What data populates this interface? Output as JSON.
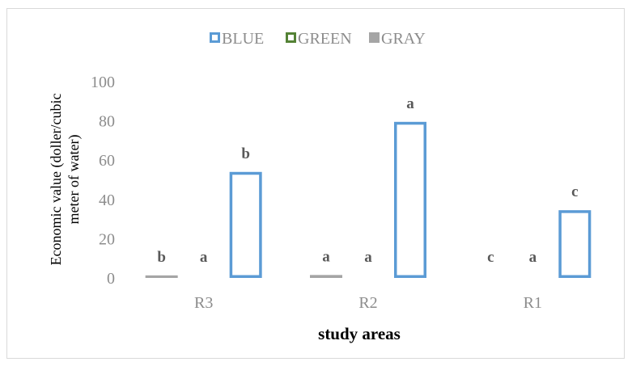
{
  "chart_data": {
    "type": "bar",
    "categories": [
      "R3",
      "R2",
      "R1"
    ],
    "series": [
      {
        "name": "BLUE",
        "values": [
          54,
          79.5,
          34.5
        ],
        "color": "#5b9bd5",
        "style": "outline",
        "labels": [
          "b",
          "a",
          "c"
        ]
      },
      {
        "name": "GREEN",
        "values": [
          0,
          0,
          0
        ],
        "color": "#548235",
        "style": "outline",
        "labels": [
          "a",
          "a",
          "a"
        ]
      },
      {
        "name": "GRAY",
        "values": [
          1.3,
          1.5,
          0
        ],
        "color": "#a5a5a5",
        "style": "filled",
        "labels": [
          "b",
          "a",
          "c"
        ]
      }
    ],
    "bar_order": [
      "GRAY",
      "GREEN",
      "BLUE"
    ],
    "legend_order": [
      "BLUE",
      "GREEN",
      "GRAY"
    ],
    "xlabel": "study areas",
    "ylabel_lines": [
      "Economic value  (doller/cubic",
      "meter of water)"
    ],
    "ylim": [
      0,
      100
    ],
    "yticks": [
      0,
      20,
      40,
      60,
      80,
      100
    ],
    "legend_position": "top-center",
    "grid": false
  }
}
